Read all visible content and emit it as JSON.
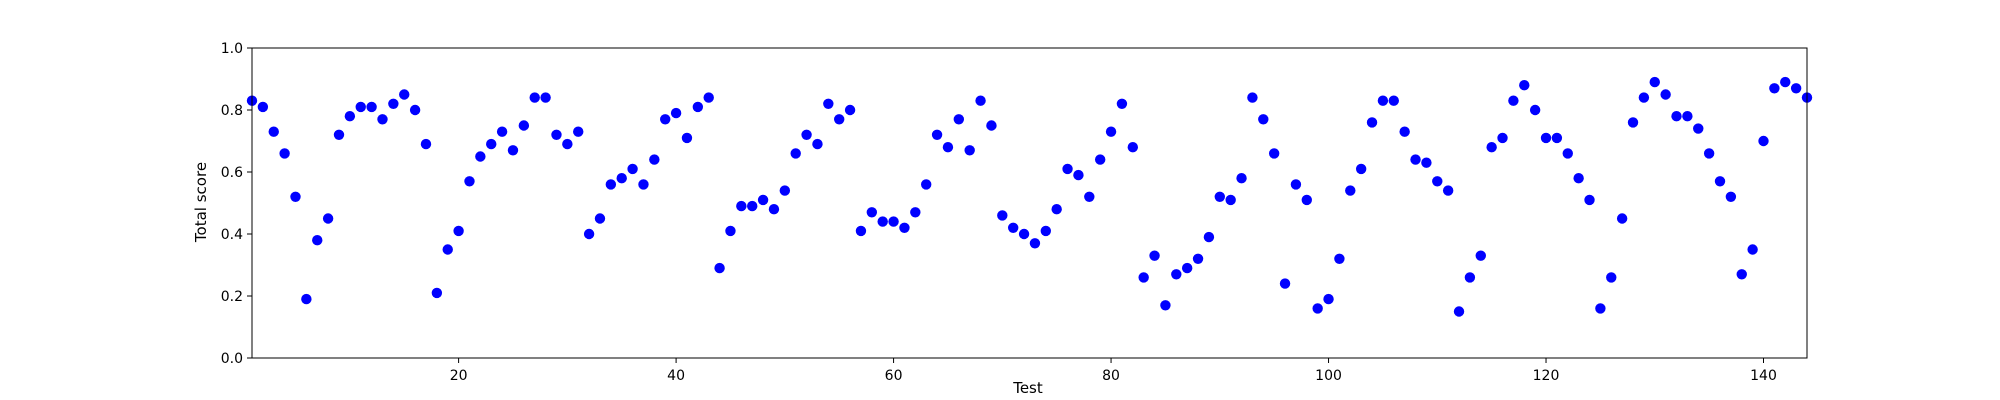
{
  "chart_data": {
    "type": "scatter",
    "title": "",
    "xlabel": "Test",
    "ylabel": "Total score",
    "xlim": [
      1,
      144
    ],
    "ylim": [
      0.0,
      1.0
    ],
    "xticks": [
      20,
      40,
      60,
      80,
      100,
      120,
      140
    ],
    "yticks": [
      "0.0",
      "0.2",
      "0.4",
      "0.6",
      "0.8",
      "1.0"
    ],
    "grid": false,
    "color": "#0000ff",
    "series": [
      {
        "x": [
          1,
          2,
          3,
          4,
          5,
          6,
          7,
          8,
          9,
          10,
          11,
          12,
          13,
          14,
          15,
          16,
          17,
          18,
          19,
          20,
          21,
          22,
          23,
          24,
          25,
          26,
          27,
          28,
          29,
          30,
          31,
          32,
          33,
          34,
          35,
          36,
          37,
          38,
          39,
          40,
          41,
          42,
          43,
          44,
          45,
          46,
          47,
          48,
          49,
          50,
          51,
          52,
          53,
          54,
          55,
          56,
          57,
          58,
          59,
          60,
          61,
          62,
          63,
          64,
          65,
          66,
          67,
          68,
          69,
          70,
          71,
          72,
          73,
          74,
          75,
          76,
          77,
          78,
          79,
          80,
          81,
          82,
          83,
          84,
          85,
          86,
          87,
          88,
          89,
          90,
          91,
          92,
          93,
          94,
          95,
          96,
          97,
          98,
          99,
          100,
          101,
          102,
          103,
          104,
          105,
          106,
          107,
          108,
          109,
          110,
          111,
          112,
          113,
          114,
          115,
          116,
          117,
          118,
          119,
          120,
          121,
          122,
          123,
          124,
          125,
          126,
          127,
          128,
          129,
          130,
          131,
          132,
          133,
          134,
          135,
          136,
          137,
          138,
          139,
          140,
          141,
          142,
          143,
          144
        ],
        "y": [
          0.83,
          0.81,
          0.73,
          0.66,
          0.52,
          0.19,
          0.38,
          0.45,
          0.72,
          0.78,
          0.81,
          0.81,
          0.77,
          0.82,
          0.85,
          0.8,
          0.69,
          0.21,
          0.35,
          0.41,
          0.57,
          0.65,
          0.69,
          0.73,
          0.67,
          0.75,
          0.84,
          0.84,
          0.72,
          0.69,
          0.73,
          0.4,
          0.45,
          0.56,
          0.58,
          0.61,
          0.56,
          0.64,
          0.77,
          0.79,
          0.71,
          0.81,
          0.84,
          0.29,
          0.41,
          0.49,
          0.49,
          0.51,
          0.48,
          0.54,
          0.66,
          0.72,
          0.69,
          0.82,
          0.77,
          0.8,
          0.41,
          0.47,
          0.44,
          0.44,
          0.42,
          0.47,
          0.56,
          0.72,
          0.68,
          0.77,
          0.67,
          0.83,
          0.75,
          0.46,
          0.42,
          0.4,
          0.37,
          0.41,
          0.48,
          0.61,
          0.59,
          0.52,
          0.64,
          0.73,
          0.82,
          0.68,
          0.26,
          0.33,
          0.17,
          0.27,
          0.29,
          0.32,
          0.39,
          0.52,
          0.51,
          0.58,
          0.84,
          0.77,
          0.66,
          0.24,
          0.56,
          0.51,
          0.16,
          0.19,
          0.32,
          0.54,
          0.61,
          0.76,
          0.83,
          0.83,
          0.73,
          0.64,
          0.63,
          0.57,
          0.54,
          0.15,
          0.26,
          0.33,
          0.68,
          0.71,
          0.83,
          0.88,
          0.8,
          0.71,
          0.71,
          0.66,
          0.58,
          0.51,
          0.16,
          0.26,
          0.45,
          0.76,
          0.84,
          0.89,
          0.85,
          0.78,
          0.78,
          0.74,
          0.66,
          0.57,
          0.52,
          0.27,
          0.35,
          0.7,
          0.87,
          0.89,
          0.87,
          0.84
        ]
      }
    ]
  }
}
